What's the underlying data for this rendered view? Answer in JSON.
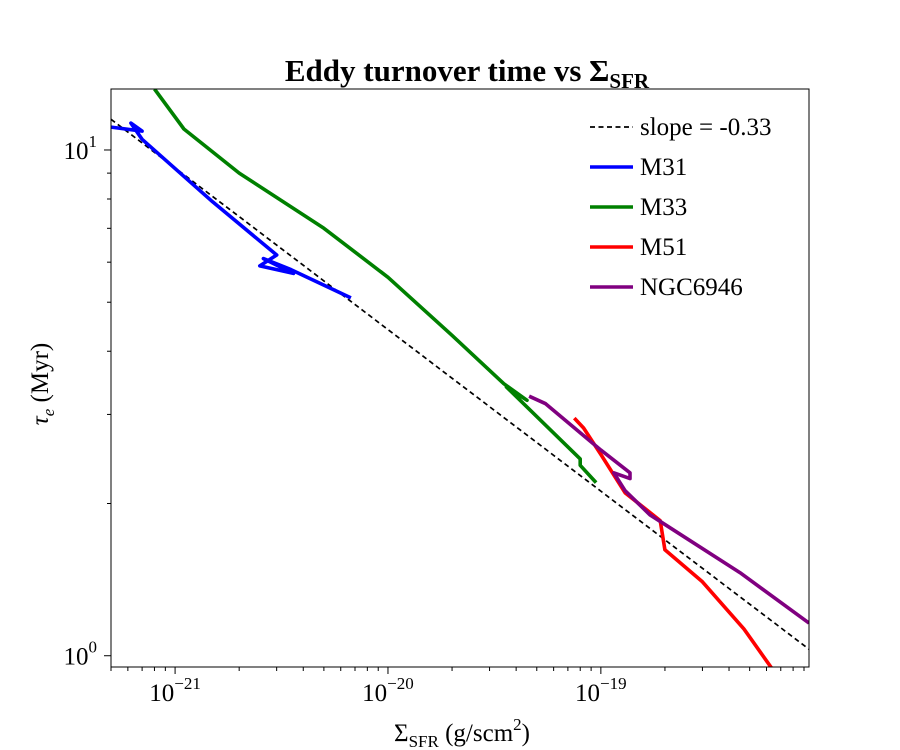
{
  "chart_data": {
    "type": "line",
    "title": "Eddy turnover time vs",
    "title_symbol": "Σ",
    "title_subscript": "SFR",
    "xlabel": {
      "symbol": "Σ",
      "subscript": "SFR",
      "unit_text": "(g/scm",
      "unit_sup": "2",
      "unit_close": ")"
    },
    "ylabel": {
      "symbol": "τ",
      "subscript": "e",
      "text": "(Myr)"
    },
    "x_scale": "log",
    "y_scale": "log",
    "xlim": [
      5e-22,
      9.5e-19
    ],
    "ylim": [
      0.95,
      13.2
    ],
    "x_ticks": [
      {
        "base": "10",
        "exp": "−21",
        "value": 1e-21
      },
      {
        "base": "10",
        "exp": "−20",
        "value": 1e-20
      },
      {
        "base": "10",
        "exp": "−19",
        "value": 1e-19
      }
    ],
    "y_ticks": [
      {
        "base": "10",
        "exp": "0",
        "value": 1
      },
      {
        "base": "10",
        "exp": "1",
        "value": 10
      }
    ],
    "grid": false,
    "legend_position": "top-right",
    "series": [
      {
        "name": "slope = -0.33",
        "color": "#000000",
        "dash": true,
        "points": [
          [
            5e-22,
            11.5
          ],
          [
            9.5e-19,
            1.03
          ]
        ]
      },
      {
        "name": "M31",
        "color": "#0000ff",
        "dash": false,
        "points": [
          [
            5e-22,
            11.1
          ],
          [
            7e-22,
            10.9
          ],
          [
            6.2e-22,
            11.3
          ],
          [
            7e-22,
            10.5
          ],
          [
            1.5e-21,
            7.9
          ],
          [
            3e-21,
            6.2
          ],
          [
            2.5e-21,
            5.9
          ],
          [
            3.6e-21,
            5.7
          ],
          [
            2.6e-21,
            6.1
          ],
          [
            3.5e-21,
            5.8
          ],
          [
            6.7e-21,
            5.1
          ]
        ]
      },
      {
        "name": "M33",
        "color": "#008000",
        "dash": false,
        "points": [
          [
            8e-22,
            13.2
          ],
          [
            1.1e-21,
            11.0
          ],
          [
            2e-21,
            9.0
          ],
          [
            5e-21,
            7.0
          ],
          [
            1e-20,
            5.6
          ],
          [
            2e-20,
            4.3
          ],
          [
            3.5e-20,
            3.45
          ],
          [
            4.5e-20,
            3.2
          ],
          [
            3.6e-20,
            3.4
          ],
          [
            8e-20,
            2.45
          ],
          [
            8e-20,
            2.38
          ],
          [
            9.5e-20,
            2.2
          ]
        ]
      },
      {
        "name": "M51",
        "color": "#ff0000",
        "dash": false,
        "points": [
          [
            7.5e-20,
            2.95
          ],
          [
            8.3e-20,
            2.82
          ],
          [
            1e-19,
            2.5
          ],
          [
            1.3e-19,
            2.1
          ],
          [
            1.9e-19,
            1.85
          ],
          [
            2e-19,
            1.62
          ],
          [
            3e-19,
            1.4
          ],
          [
            4.7e-19,
            1.13
          ],
          [
            6.4e-19,
            0.94
          ]
        ]
      },
      {
        "name": "NGC6946",
        "color": "#800080",
        "dash": false,
        "points": [
          [
            4.6e-20,
            3.26
          ],
          [
            5.5e-20,
            3.15
          ],
          [
            1e-19,
            2.55
          ],
          [
            1.37e-19,
            2.3
          ],
          [
            1.37e-19,
            2.24
          ],
          [
            1.15e-19,
            2.3
          ],
          [
            1.3e-19,
            2.12
          ],
          [
            1.7e-19,
            1.9
          ],
          [
            2.3e-19,
            1.75
          ],
          [
            4.5e-19,
            1.46
          ],
          [
            9.5e-19,
            1.16
          ]
        ]
      }
    ]
  }
}
